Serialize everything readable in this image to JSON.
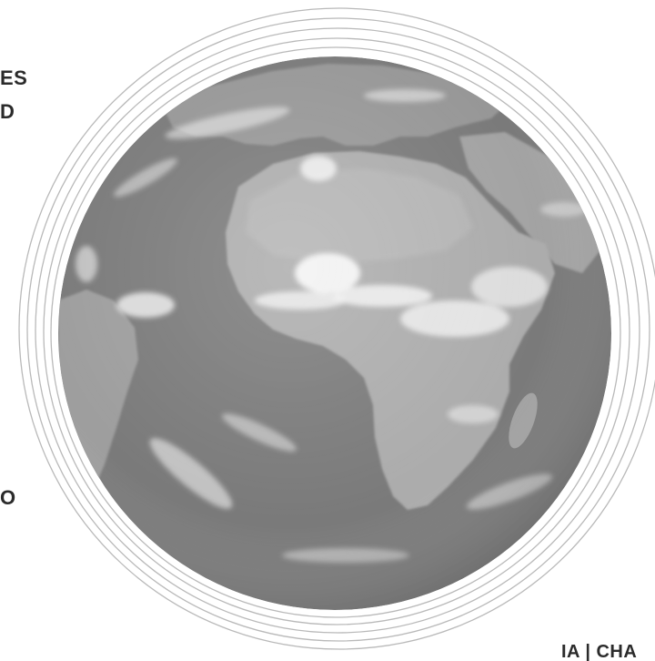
{
  "text_fragments": {
    "left_top_line1": "ES",
    "left_top_line2": "D",
    "left_middle": "O",
    "bottom_right": "IA | CHA"
  },
  "colors": {
    "ocean": "#7a7a7a",
    "land": "#acacac",
    "cloud": "#f2f2f2",
    "orbit_ring": "#b9b9b9",
    "text": "#2b2b2b",
    "background": "#ffffff"
  },
  "image": {
    "subject": "grayscale satellite view of Earth centred on Africa and the Atlantic, ringed by thin concentric orbit lines",
    "visible_regions": [
      "Africa",
      "Europe",
      "Atlantic Ocean",
      "South America",
      "Arabian Peninsula"
    ]
  }
}
